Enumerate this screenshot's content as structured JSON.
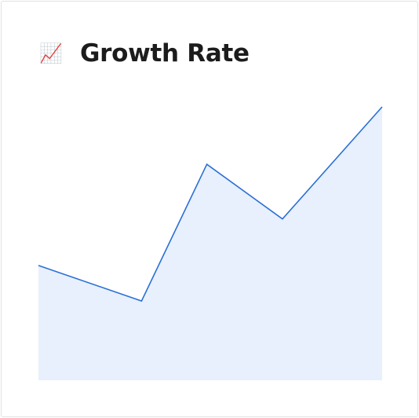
{
  "icon": "📈",
  "chart_data": {
    "type": "area",
    "title": "Growth Rate",
    "x": [
      0,
      30,
      49,
      71,
      100
    ],
    "values": [
      42,
      29,
      79,
      59,
      100
    ],
    "xlim": [
      0,
      100
    ],
    "ylim": [
      0,
      100
    ],
    "color": "#2a6fd6",
    "fill": "#e8f0fd"
  }
}
